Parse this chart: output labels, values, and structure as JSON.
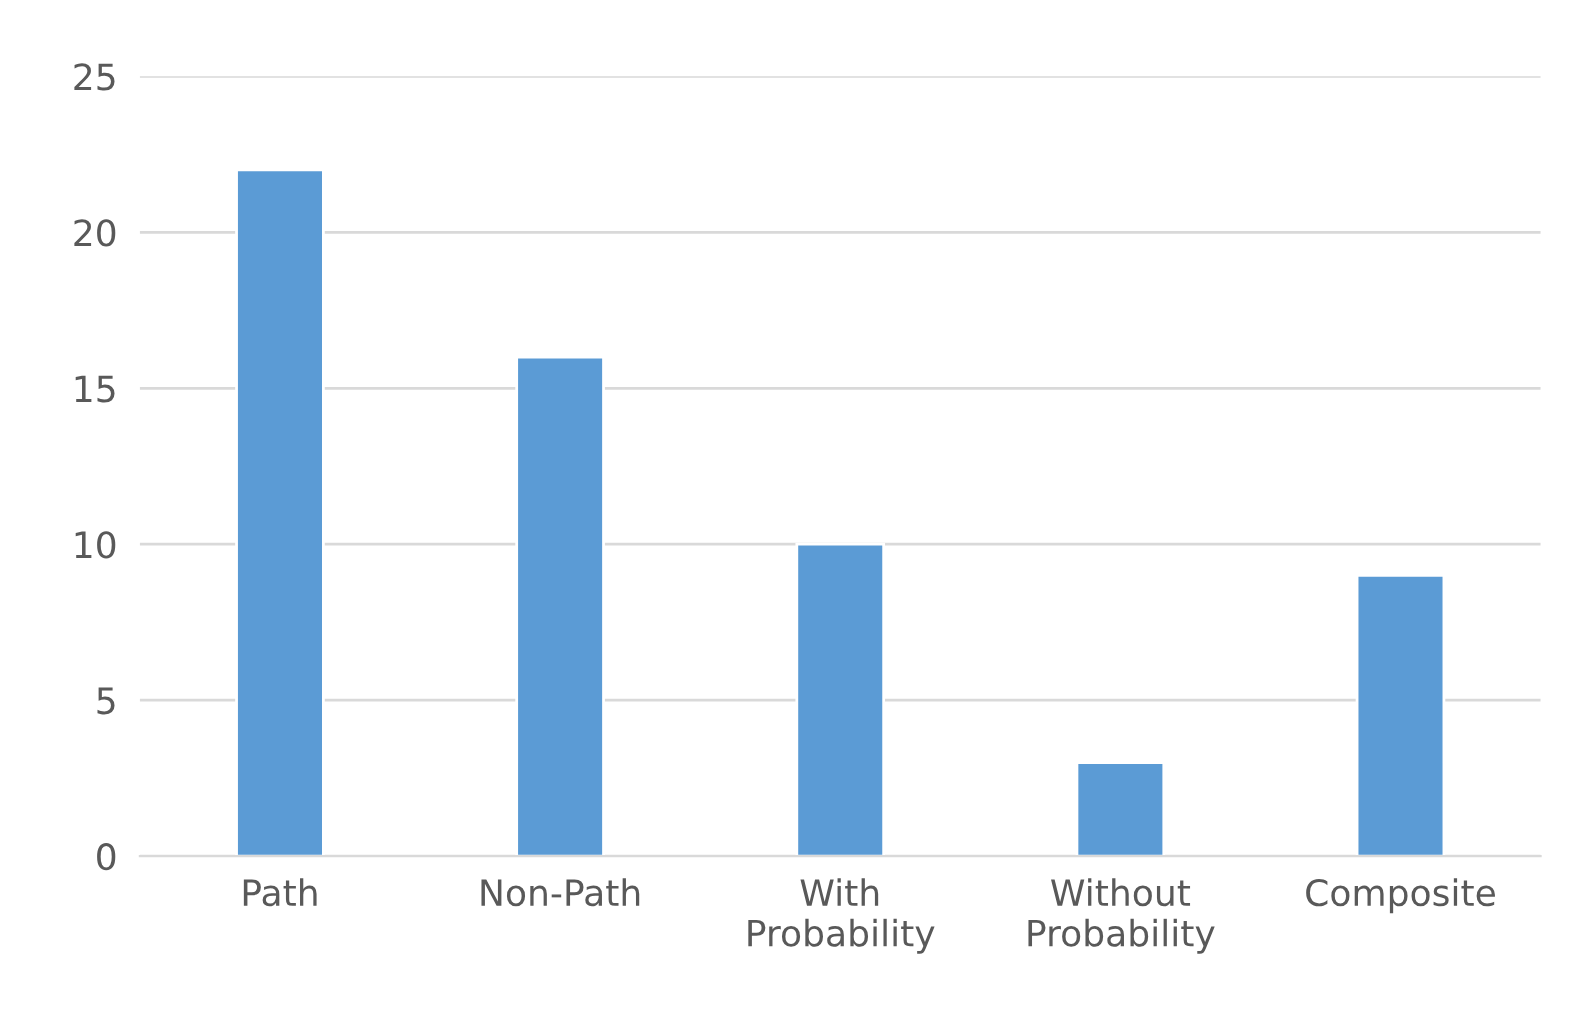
{
  "chart_data": {
    "type": "bar",
    "categories": [
      "Path",
      "Non-Path",
      "With\nProbability",
      "Without\nProbability",
      "Composite"
    ],
    "values": [
      22,
      16,
      10,
      3,
      9
    ],
    "color": "#5b9bd5",
    "ylim": [
      0,
      25
    ],
    "yticks": [
      0,
      5,
      10,
      15,
      20,
      25
    ],
    "grid": "y",
    "legend": false
  }
}
